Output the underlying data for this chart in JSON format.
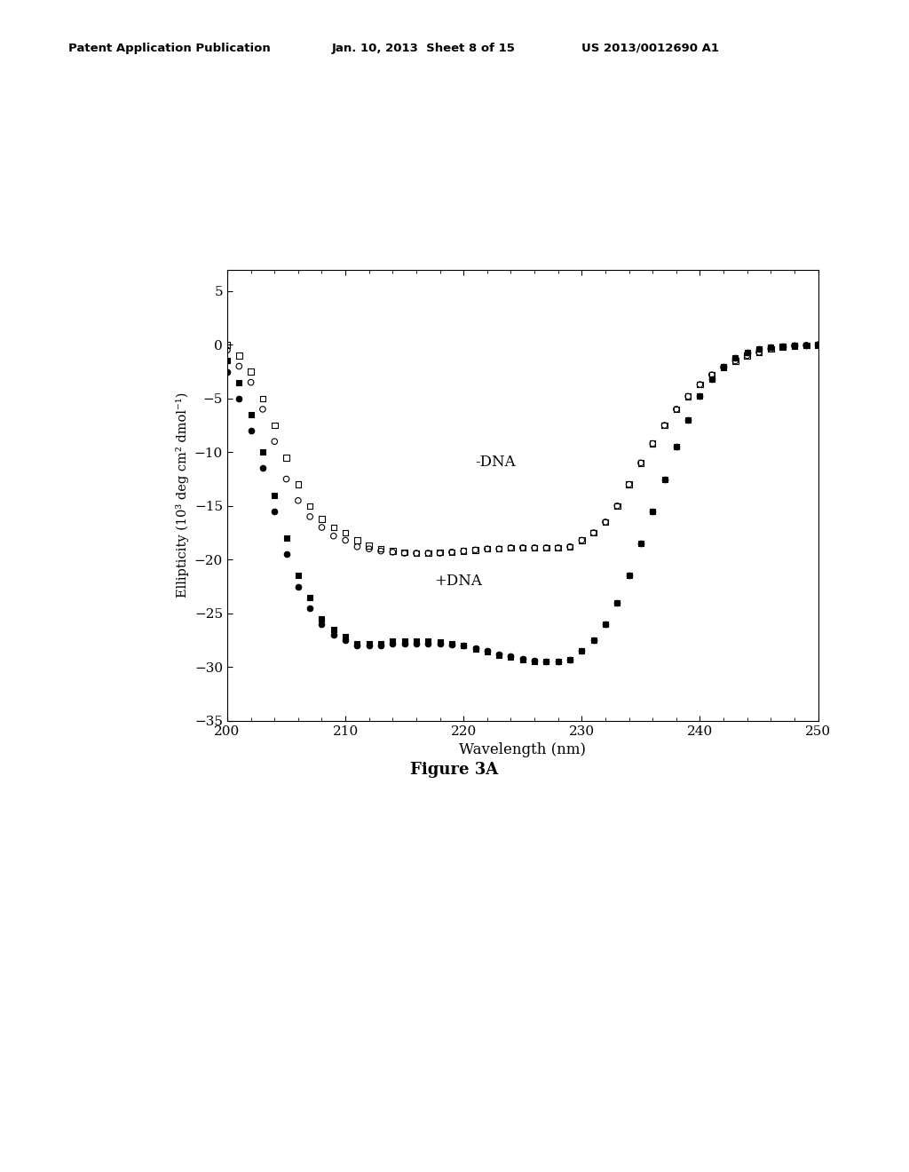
{
  "header_left": "Patent Application Publication",
  "header_center": "Jan. 10, 2013  Sheet 8 of 15",
  "header_right": "US 2013/0012690 A1",
  "figure_label": "Figure 3A",
  "xlabel": "Wavelength (nm)",
  "ylabel": "Ellipticity (10³ deg cm² dmol⁻¹)",
  "xlim": [
    200,
    250
  ],
  "ylim": [
    -35,
    7
  ],
  "xticks": [
    200,
    210,
    220,
    230,
    240,
    250
  ],
  "yticks": [
    -35,
    -30,
    -25,
    -20,
    -15,
    -10,
    -5,
    0,
    5
  ],
  "label_minus_dna": "-DNA",
  "label_plus_dna": "+DNA",
  "background_color": "#ffffff",
  "minus_dna_open_circle": {
    "x": [
      200,
      201,
      202,
      203,
      204,
      205,
      206,
      207,
      208,
      209,
      210,
      211,
      212,
      213,
      214,
      215,
      216,
      217,
      218,
      219,
      220,
      221,
      222,
      223,
      224,
      225,
      226,
      227,
      228,
      229,
      230,
      231,
      232,
      233,
      234,
      235,
      236,
      237,
      238,
      239,
      240,
      241,
      242,
      243,
      244,
      245,
      246,
      247,
      248,
      249,
      250
    ],
    "y": [
      -0.5,
      -2.0,
      -3.5,
      -6.0,
      -9.0,
      -12.5,
      -14.5,
      -16.0,
      -17.0,
      -17.8,
      -18.2,
      -18.8,
      -19.0,
      -19.2,
      -19.3,
      -19.4,
      -19.4,
      -19.4,
      -19.4,
      -19.3,
      -19.2,
      -19.1,
      -19.0,
      -19.0,
      -18.9,
      -18.9,
      -18.9,
      -18.9,
      -18.9,
      -18.8,
      -18.2,
      -17.5,
      -16.5,
      -15.0,
      -13.0,
      -11.0,
      -9.2,
      -7.5,
      -6.0,
      -4.8,
      -3.7,
      -2.8,
      -2.1,
      -1.5,
      -1.0,
      -0.7,
      -0.4,
      -0.2,
      -0.1,
      -0.05,
      0.0
    ]
  },
  "minus_dna_open_square": {
    "x": [
      200,
      201,
      202,
      203,
      204,
      205,
      206,
      207,
      208,
      209,
      210,
      211,
      212,
      213,
      214,
      215,
      216,
      217,
      218,
      219,
      220,
      221,
      222,
      223,
      224,
      225,
      226,
      227,
      228,
      229,
      230,
      231,
      232,
      233,
      234,
      235,
      236,
      237,
      238,
      239,
      240,
      241,
      242,
      243,
      244,
      245,
      246,
      247,
      248,
      249,
      250
    ],
    "y": [
      0.0,
      -1.0,
      -2.5,
      -5.0,
      -7.5,
      -10.5,
      -13.0,
      -15.0,
      -16.2,
      -17.0,
      -17.5,
      -18.2,
      -18.7,
      -19.0,
      -19.2,
      -19.3,
      -19.4,
      -19.4,
      -19.3,
      -19.3,
      -19.2,
      -19.1,
      -19.0,
      -19.0,
      -18.9,
      -18.9,
      -18.9,
      -18.9,
      -18.9,
      -18.8,
      -18.2,
      -17.5,
      -16.5,
      -15.0,
      -13.0,
      -11.0,
      -9.2,
      -7.5,
      -6.0,
      -4.8,
      -3.7,
      -2.8,
      -2.1,
      -1.5,
      -1.0,
      -0.7,
      -0.4,
      -0.2,
      -0.1,
      -0.05,
      -0.02
    ]
  },
  "plus_dna_filled_circle": {
    "x": [
      200,
      201,
      202,
      203,
      204,
      205,
      206,
      207,
      208,
      209,
      210,
      211,
      212,
      213,
      214,
      215,
      216,
      217,
      218,
      219,
      220,
      221,
      222,
      223,
      224,
      225,
      226,
      227,
      228,
      229,
      230,
      231,
      232,
      233,
      234,
      235,
      236,
      237,
      238,
      239,
      240,
      241,
      242,
      243,
      244,
      245,
      246,
      247,
      248,
      249,
      250
    ],
    "y": [
      -2.5,
      -5.0,
      -8.0,
      -11.5,
      -15.5,
      -19.5,
      -22.5,
      -24.5,
      -26.0,
      -27.0,
      -27.5,
      -28.0,
      -28.0,
      -28.0,
      -27.8,
      -27.8,
      -27.8,
      -27.8,
      -27.8,
      -27.9,
      -28.0,
      -28.2,
      -28.5,
      -28.8,
      -29.0,
      -29.2,
      -29.4,
      -29.5,
      -29.5,
      -29.3,
      -28.5,
      -27.5,
      -26.0,
      -24.0,
      -21.5,
      -18.5,
      -15.5,
      -12.5,
      -9.5,
      -7.0,
      -4.8,
      -3.2,
      -2.0,
      -1.2,
      -0.7,
      -0.4,
      -0.2,
      -0.1,
      -0.05,
      -0.02,
      0.0
    ]
  },
  "plus_dna_filled_square": {
    "x": [
      200,
      201,
      202,
      203,
      204,
      205,
      206,
      207,
      208,
      209,
      210,
      211,
      212,
      213,
      214,
      215,
      216,
      217,
      218,
      219,
      220,
      221,
      222,
      223,
      224,
      225,
      226,
      227,
      228,
      229,
      230,
      231,
      232,
      233,
      234,
      235,
      236,
      237,
      238,
      239,
      240,
      241,
      242,
      243,
      244,
      245,
      246,
      247,
      248,
      249,
      250
    ],
    "y": [
      -1.5,
      -3.5,
      -6.5,
      -10.0,
      -14.0,
      -18.0,
      -21.5,
      -23.5,
      -25.5,
      -26.5,
      -27.2,
      -27.8,
      -27.8,
      -27.8,
      -27.6,
      -27.6,
      -27.6,
      -27.6,
      -27.7,
      -27.8,
      -28.0,
      -28.3,
      -28.6,
      -28.9,
      -29.1,
      -29.3,
      -29.5,
      -29.5,
      -29.5,
      -29.3,
      -28.5,
      -27.5,
      -26.0,
      -24.0,
      -21.5,
      -18.5,
      -15.5,
      -12.5,
      -9.5,
      -7.0,
      -4.8,
      -3.2,
      -2.0,
      -1.2,
      -0.7,
      -0.4,
      -0.2,
      -0.1,
      -0.05,
      -0.02,
      0.0
    ]
  }
}
